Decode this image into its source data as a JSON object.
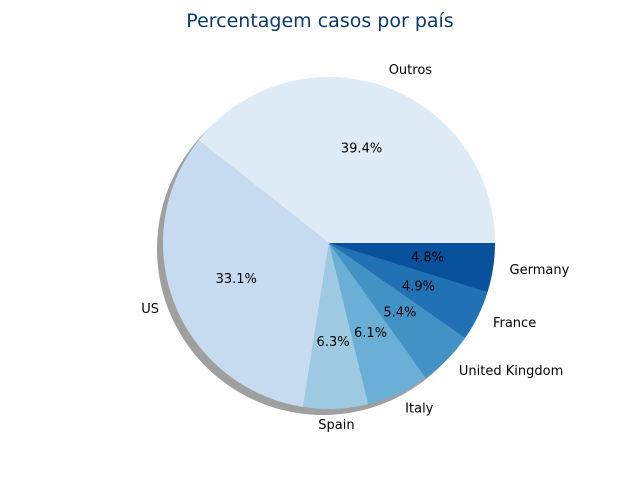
{
  "chart_data": {
    "type": "pie",
    "title": "Percentagem casos por país",
    "shadow": true,
    "start_angle": 0,
    "direction": "counterclockwise",
    "slices": [
      {
        "label": "Outros",
        "value": 39.4,
        "pct_label": "39.4%",
        "color": "#deebf7"
      },
      {
        "label": "US",
        "value": 33.1,
        "pct_label": "33.1%",
        "color": "#c6dbef"
      },
      {
        "label": "Spain",
        "value": 6.3,
        "pct_label": "6.3%",
        "color": "#9ecae1"
      },
      {
        "label": "Italy",
        "value": 6.1,
        "pct_label": "6.1%",
        "color": "#6baed6"
      },
      {
        "label": "United Kingdom",
        "value": 5.4,
        "pct_label": "5.4%",
        "color": "#4292c6"
      },
      {
        "label": "France",
        "value": 4.9,
        "pct_label": "4.9%",
        "color": "#2171b5"
      },
      {
        "label": "Germany",
        "value": 4.8,
        "pct_label": "4.8%",
        "color": "#08519c"
      }
    ]
  }
}
